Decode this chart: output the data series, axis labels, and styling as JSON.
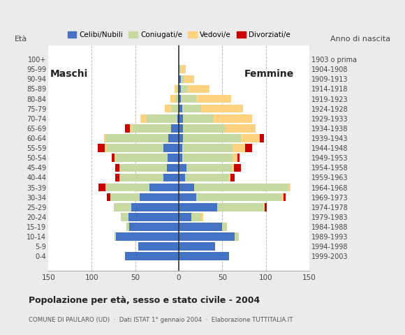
{
  "age_groups": [
    "0-4",
    "5-9",
    "10-14",
    "15-19",
    "20-24",
    "25-29",
    "30-34",
    "35-39",
    "40-44",
    "45-49",
    "50-54",
    "55-59",
    "60-64",
    "65-69",
    "70-74",
    "75-79",
    "80-84",
    "85-89",
    "90-94",
    "95-99",
    "100+"
  ],
  "birth_years": [
    "1999-2003",
    "1994-1998",
    "1989-1993",
    "1984-1988",
    "1979-1983",
    "1974-1978",
    "1969-1973",
    "1964-1968",
    "1959-1963",
    "1954-1958",
    "1949-1953",
    "1944-1948",
    "1939-1943",
    "1934-1938",
    "1929-1933",
    "1924-1928",
    "1919-1923",
    "1914-1918",
    "1909-1913",
    "1904-1908",
    "1903 o prima"
  ],
  "males_celibe": [
    62,
    47,
    72,
    57,
    58,
    55,
    45,
    34,
    18,
    14,
    13,
    18,
    12,
    9,
    2,
    0,
    0,
    0,
    0,
    0,
    0
  ],
  "males_coniugato": [
    0,
    0,
    2,
    3,
    9,
    20,
    34,
    50,
    50,
    54,
    60,
    65,
    72,
    44,
    35,
    8,
    4,
    2,
    0,
    0,
    0
  ],
  "males_vedovo": [
    0,
    0,
    0,
    0,
    0,
    0,
    0,
    0,
    0,
    0,
    1,
    2,
    2,
    3,
    7,
    8,
    6,
    3,
    0,
    0,
    0
  ],
  "males_divorziato": [
    0,
    0,
    0,
    0,
    0,
    0,
    4,
    8,
    5,
    5,
    3,
    8,
    0,
    6,
    0,
    0,
    0,
    0,
    0,
    0,
    0
  ],
  "females_nubile": [
    58,
    42,
    64,
    50,
    14,
    44,
    20,
    18,
    7,
    9,
    4,
    4,
    5,
    5,
    5,
    4,
    2,
    2,
    2,
    0,
    0
  ],
  "females_coniugata": [
    0,
    0,
    5,
    5,
    12,
    53,
    98,
    108,
    50,
    52,
    58,
    58,
    66,
    48,
    35,
    22,
    18,
    8,
    4,
    2,
    0
  ],
  "females_vedova": [
    0,
    0,
    0,
    0,
    2,
    2,
    2,
    2,
    2,
    2,
    5,
    14,
    22,
    35,
    44,
    48,
    40,
    25,
    12,
    6,
    0
  ],
  "females_divorziata": [
    0,
    0,
    0,
    0,
    0,
    2,
    3,
    0,
    5,
    8,
    3,
    8,
    5,
    0,
    0,
    0,
    0,
    0,
    0,
    0,
    0
  ],
  "col_celibe": "#4472c4",
  "col_coniugato": "#c5d9a0",
  "col_vedovo": "#ffd27f",
  "col_divorziato": "#cc0000",
  "legend_labels": [
    "Celibi/Nubili",
    "Coniugati/e",
    "Vedovi/e",
    "Divorziati/e"
  ],
  "label_maschi": "Maschi",
  "label_femmine": "Femmine",
  "title": "Popolazione per età, sesso e stato civile - 2004",
  "subtitle": "COMUNE DI PAULARO (UD)  ·  Dati ISTAT 1° gennaio 2004  ·  Elaborazione TUTTITALIA.IT",
  "ylabel_left": "Età",
  "ylabel_right": "Anno di nascita",
  "xlim": 150,
  "bg_color": "#ebebeb",
  "plot_bg": "#ffffff"
}
